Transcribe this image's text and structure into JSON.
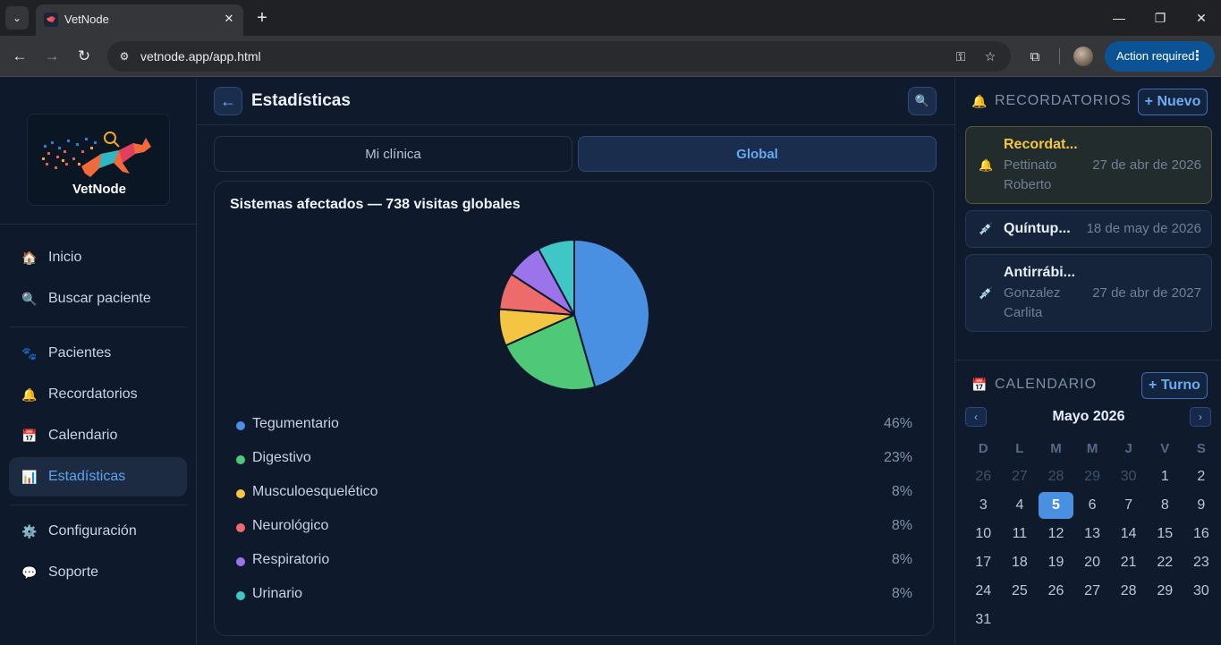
{
  "browser": {
    "tab_title": "VetNode",
    "url": "vetnode.app/app.html",
    "action_label": "Action required"
  },
  "brand": {
    "name": "VetNode"
  },
  "nav": {
    "items": [
      {
        "label": "Inicio",
        "icon": "home-icon"
      },
      {
        "label": "Buscar paciente",
        "icon": "search-icon"
      },
      {
        "label": "Pacientes",
        "icon": "paw-icon"
      },
      {
        "label": "Recordatorios",
        "icon": "bell-icon"
      },
      {
        "label": "Calendario",
        "icon": "calendar-icon"
      },
      {
        "label": "Estadísticas",
        "icon": "chart-icon",
        "active": true
      },
      {
        "label": "Configuración",
        "icon": "gear-icon"
      },
      {
        "label": "Soporte",
        "icon": "chat-icon"
      }
    ]
  },
  "main": {
    "title": "Estadísticas",
    "tabs": [
      {
        "label": "Mi clínica",
        "active": false
      },
      {
        "label": "Global",
        "active": true
      }
    ],
    "card_title": "Sistemas afectados — 738 visitas globales"
  },
  "chart_data": {
    "type": "pie",
    "title": "Sistemas afectados — 738 visitas globales",
    "categories": [
      "Tegumentario",
      "Digestivo",
      "Musculoesquelético",
      "Neurológico",
      "Respiratorio",
      "Urinario"
    ],
    "values": [
      46,
      23,
      8,
      8,
      8,
      8
    ],
    "labels": [
      "46%",
      "23%",
      "8%",
      "8%",
      "8%",
      "8%"
    ],
    "colors": [
      "#4a90e2",
      "#4fc978",
      "#f4c542",
      "#ee6b6b",
      "#9b74ec",
      "#3fc7c7"
    ],
    "legend_position": "bottom"
  },
  "reminders": {
    "title": "RECORDATORIOS",
    "new_label": "+ Nuevo",
    "items": [
      {
        "title": "Recordat...",
        "patient_line1": "Pettinato",
        "patient_line2": "Roberto",
        "date": "27 de abr de 2026",
        "icon": "bell-icon",
        "status": "warning"
      },
      {
        "title": "Quíntup...",
        "patient_line1": "",
        "patient_line2": "",
        "date": "18 de may de 2026",
        "icon": "syringe-icon",
        "status": "normal"
      },
      {
        "title": "Antirrábi...",
        "patient_line1": "Gonzalez",
        "patient_line2": "Carlita",
        "date": "27 de abr de 2027",
        "icon": "syringe-icon",
        "status": "normal"
      }
    ]
  },
  "calendar": {
    "title": "CALENDARIO",
    "new_label": "+ Turno",
    "prev_label": "‹",
    "next_label": "›",
    "month": "Mayo 2026",
    "weekdays": [
      "D",
      "L",
      "M",
      "M",
      "J",
      "V",
      "S"
    ],
    "days": [
      {
        "d": "26",
        "muted": true
      },
      {
        "d": "27",
        "muted": true
      },
      {
        "d": "28",
        "muted": true
      },
      {
        "d": "29",
        "muted": true
      },
      {
        "d": "30",
        "muted": true
      },
      {
        "d": "1"
      },
      {
        "d": "2"
      },
      {
        "d": "3"
      },
      {
        "d": "4"
      },
      {
        "d": "5",
        "today": true
      },
      {
        "d": "6"
      },
      {
        "d": "7"
      },
      {
        "d": "8"
      },
      {
        "d": "9"
      },
      {
        "d": "10"
      },
      {
        "d": "11"
      },
      {
        "d": "12"
      },
      {
        "d": "13"
      },
      {
        "d": "14"
      },
      {
        "d": "15"
      },
      {
        "d": "16"
      },
      {
        "d": "17"
      },
      {
        "d": "18"
      },
      {
        "d": "19"
      },
      {
        "d": "20"
      },
      {
        "d": "21"
      },
      {
        "d": "22"
      },
      {
        "d": "23"
      },
      {
        "d": "24"
      },
      {
        "d": "25"
      },
      {
        "d": "26"
      },
      {
        "d": "27"
      },
      {
        "d": "28"
      },
      {
        "d": "29"
      },
      {
        "d": "30"
      },
      {
        "d": "31"
      }
    ]
  }
}
